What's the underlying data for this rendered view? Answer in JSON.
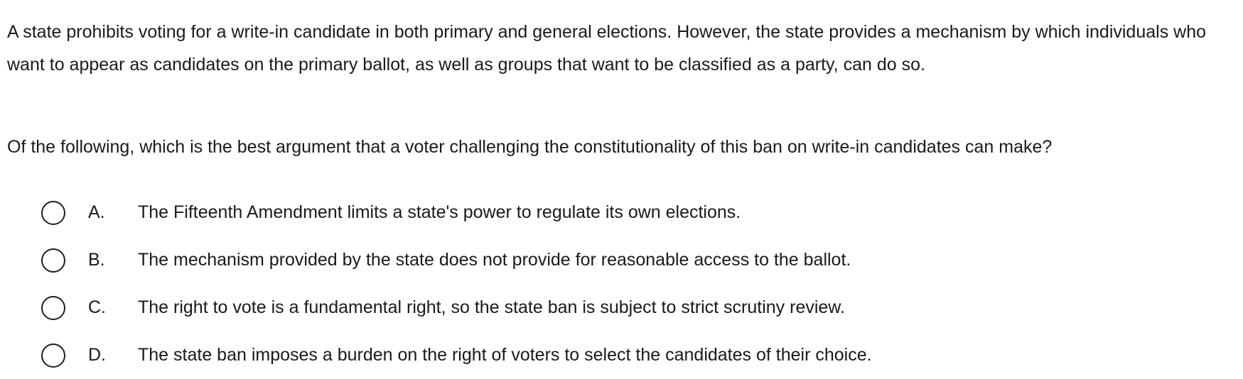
{
  "question": {
    "stem": "A state prohibits voting for a write-in candidate in both primary and general elections.  However, the state provides a mechanism by which individuals who want to appear as candidates on the primary ballot, as well as groups that want to be classified as a party, can do so.",
    "prompt": "Of the following, which is the best argument that a voter challenging the constitutionality of this ban on write-in candidates can make?"
  },
  "options": [
    {
      "letter": "A.",
      "text": "The Fifteenth Amendment limits a state's power to regulate its own elections."
    },
    {
      "letter": "B.",
      "text": "The mechanism provided by the state does not provide for reasonable access to the ballot."
    },
    {
      "letter": "C.",
      "text": "The right to vote is a fundamental right, so the state ban is subject to strict scrutiny review."
    },
    {
      "letter": "D.",
      "text": "The state ban imposes a burden on the right of voters to select the candidates of their choice."
    }
  ],
  "icons": {
    "radio": "radio-unchecked-icon"
  },
  "colors": {
    "text": "#1a1a1a",
    "radio_border": "#1f1f1f",
    "background": "#ffffff"
  }
}
